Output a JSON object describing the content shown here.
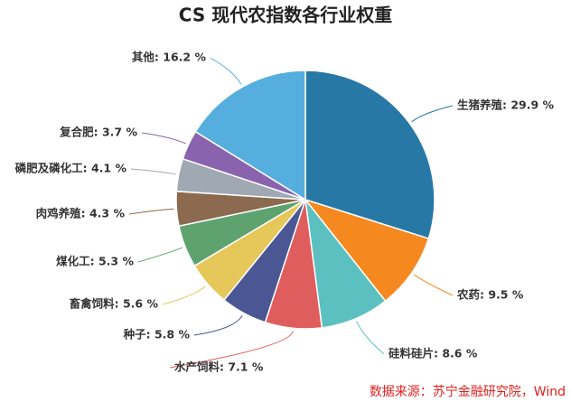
{
  "chart_data": {
    "type": "pie",
    "title": "CS 现代农指数各行业权重",
    "values": [
      29.9,
      9.5,
      8.6,
      7.1,
      5.8,
      5.6,
      5.3,
      4.3,
      4.1,
      3.7,
      16.2
    ],
    "value_labels": [
      "生猪养殖: 29.9 %",
      "农药: 9.5 %",
      "硅料硅片: 8.6 %",
      "水产饲料: 7.1 %",
      "种子: 5.8 %",
      "畜禽饲料: 5.6 %",
      "煤化工: 5.3 %",
      "肉鸡养殖: 4.3 %",
      "磷肥及磷化工: 4.1 %",
      "复合肥: 3.7 %",
      "其他: 16.2 %"
    ],
    "colors": [
      "#2878a6",
      "#f5891f",
      "#5cc0c0",
      "#e05d5d",
      "#4a5794",
      "#e6c75a",
      "#5ea36f",
      "#8b6a4f",
      "#a0a9b3",
      "#8a63ae",
      "#55aede"
    ],
    "source": "数据来源：苏宁金融研究院，Wind"
  }
}
